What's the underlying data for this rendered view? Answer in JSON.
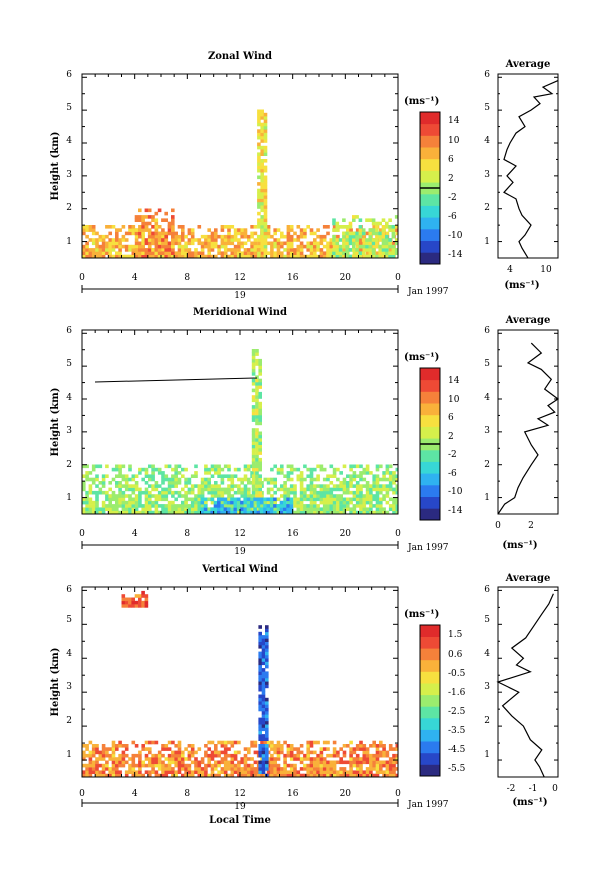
{
  "panels": [
    {
      "title": "Zonal Wind",
      "ylabel": "Height (km)",
      "xticks": [
        "0",
        "4",
        "8",
        "12",
        "16",
        "20",
        "0"
      ],
      "yticks": [
        "1",
        "2",
        "3",
        "4",
        "5",
        "6"
      ],
      "day_label": "19",
      "month_label": "Jan 1997",
      "unit": "(ms⁻¹)",
      "cbar_ticks": [
        "14",
        "10",
        "6",
        "2",
        "-2",
        "-6",
        "-10",
        "-14"
      ],
      "cbar_range": [
        -16,
        16
      ],
      "cbar_line": 0,
      "avg_title": "Average",
      "avg_xticks": [
        "4",
        "10"
      ],
      "avg_xunit": "(ms⁻¹)",
      "avg_yticks": [
        "1",
        "2",
        "3",
        "4",
        "5",
        "6"
      ]
    },
    {
      "title": "Meridional Wind",
      "ylabel": "Height (km)",
      "xticks": [
        "0",
        "4",
        "8",
        "12",
        "16",
        "20",
        "0"
      ],
      "yticks": [
        "1",
        "2",
        "3",
        "4",
        "5",
        "6"
      ],
      "day_label": "19",
      "month_label": "Jan 1997",
      "unit": "(ms⁻¹)",
      "cbar_ticks": [
        "14",
        "10",
        "6",
        "2",
        "-2",
        "-6",
        "-10",
        "-14"
      ],
      "cbar_range": [
        -16,
        16
      ],
      "cbar_line": 0,
      "avg_title": "Average",
      "avg_xticks": [
        "0",
        "2"
      ],
      "avg_xunit": "(ms⁻¹)",
      "avg_yticks": [
        "1",
        "2",
        "3",
        "4",
        "5",
        "6"
      ]
    },
    {
      "title": "Vertical Wind",
      "ylabel": "Height (km)",
      "xticks": [
        "0",
        "4",
        "8",
        "12",
        "16",
        "20",
        "0"
      ],
      "yticks": [
        "1",
        "2",
        "3",
        "4",
        "5",
        "6"
      ],
      "day_label": "19",
      "month_label": "Jan 1997",
      "unit": "(ms⁻¹)",
      "cbar_ticks": [
        "1.5",
        "0.6",
        "-0.5",
        "-1.6",
        "-2.5",
        "-3.5",
        "-4.5",
        "-5.5"
      ],
      "cbar_range": [
        -6,
        2
      ],
      "cbar_line": null,
      "avg_title": "Average",
      "avg_xticks": [
        "-2",
        "-1",
        "0"
      ],
      "avg_xunit": "(ms⁻¹)",
      "avg_yticks": [
        "1",
        "2",
        "3",
        "4",
        "5",
        "6"
      ]
    }
  ],
  "xlabel_bottom": "Local Time",
  "colors": {
    "scale": [
      "#2b2a80",
      "#2747c8",
      "#2b7bef",
      "#2fb2f0",
      "#37d7d6",
      "#5de5a4",
      "#9bec6e",
      "#d6ef4b",
      "#f7e03f",
      "#f9b13a",
      "#f5813a",
      "#ee4a35",
      "#e02b2b"
    ],
    "background": "#ffffff"
  },
  "chart_data": [
    {
      "type": "heatmap",
      "title": "Zonal Wind",
      "xlabel": "",
      "ylabel": "Height (km)",
      "x_range_hours": [
        0,
        24
      ],
      "y_range_km": [
        0.5,
        6
      ],
      "colorbar_range": [
        -16,
        16
      ],
      "features": [
        {
          "name": "low-level band",
          "x_hours": [
            0,
            24
          ],
          "y_km": [
            0.5,
            1.5
          ],
          "value": 7
        },
        {
          "name": "morning patches",
          "x_hours": [
            4,
            7
          ],
          "y_km": [
            0.5,
            2.0
          ],
          "value": 9
        },
        {
          "name": "column 13.5 h",
          "x_hours": [
            13.3,
            14.0
          ],
          "y_km": [
            0.5,
            5.0
          ],
          "value": 4
        },
        {
          "name": "night region",
          "x_hours": [
            19,
            24
          ],
          "y_km": [
            0.5,
            1.8
          ],
          "value": 1
        }
      ],
      "average_profile": {
        "height_km": [
          0.5,
          0.8,
          1.0,
          1.2,
          1.5,
          1.8,
          2.0,
          2.3,
          2.5,
          2.8,
          3.0,
          3.3,
          3.5,
          3.8,
          4.0,
          4.3,
          4.5,
          4.8,
          5.0,
          5.2,
          5.4,
          5.5,
          5.7,
          5.9
        ],
        "value": [
          7.0,
          6.0,
          5.5,
          6.5,
          7.5,
          6.0,
          5.5,
          5.0,
          3.0,
          4.5,
          3.5,
          5.0,
          3.0,
          3.5,
          4.0,
          5.0,
          6.5,
          5.5,
          7.5,
          9.0,
          8.0,
          11.0,
          9.5,
          12.0
        ],
        "xlim": [
          2,
          12
        ]
      }
    },
    {
      "type": "heatmap",
      "title": "Meridional Wind",
      "xlabel": "",
      "ylabel": "Height (km)",
      "x_range_hours": [
        0,
        24
      ],
      "y_range_km": [
        0.5,
        6
      ],
      "colorbar_range": [
        -16,
        16
      ],
      "features": [
        {
          "name": "low-level band",
          "x_hours": [
            0,
            24
          ],
          "y_km": [
            0.5,
            2.0
          ],
          "value": 0
        },
        {
          "name": "column 13 h",
          "x_hours": [
            12.9,
            13.6
          ],
          "y_km": [
            0.5,
            5.5
          ],
          "value": 1
        },
        {
          "name": "negative core",
          "x_hours": [
            9,
            16
          ],
          "y_km": [
            0.5,
            1.0
          ],
          "value": -7
        }
      ],
      "average_profile": {
        "height_km": [
          0.5,
          0.8,
          1.0,
          1.3,
          1.6,
          2.0,
          2.3,
          2.6,
          3.0,
          3.2,
          3.4,
          3.6,
          3.8,
          4.0,
          4.3,
          4.6,
          4.9,
          5.1,
          5.4,
          5.7
        ],
        "value": [
          0.0,
          0.4,
          1.0,
          1.2,
          1.5,
          2.0,
          2.4,
          2.0,
          1.6,
          3.0,
          2.4,
          3.4,
          3.0,
          3.6,
          2.8,
          3.2,
          2.6,
          1.8,
          2.6,
          2.0
        ],
        "xlim": [
          0,
          3.6
        ]
      }
    },
    {
      "type": "heatmap",
      "title": "Vertical Wind",
      "xlabel": "Local Time",
      "ylabel": "Height (km)",
      "x_range_hours": [
        0,
        24
      ],
      "y_range_km": [
        0.5,
        6
      ],
      "colorbar_range": [
        -6,
        2
      ],
      "features": [
        {
          "name": "low-level band",
          "x_hours": [
            0,
            24
          ],
          "y_km": [
            0.5,
            1.6
          ],
          "value": 0.3
        },
        {
          "name": "downdraft column",
          "x_hours": [
            13.4,
            14.2
          ],
          "y_km": [
            0.5,
            5.0
          ],
          "value": -4.8
        },
        {
          "name": "isolated points",
          "x_hours": [
            3,
            5
          ],
          "y_km": [
            5.5,
            6.0
          ],
          "value": 0.8
        }
      ],
      "average_profile": {
        "height_km": [
          0.5,
          0.8,
          1.0,
          1.3,
          1.6,
          2.0,
          2.3,
          2.6,
          3.0,
          3.3,
          3.6,
          3.8,
          4.0,
          4.3,
          4.6,
          5.0,
          5.3,
          5.6,
          5.9
        ],
        "value": [
          -0.4,
          -0.6,
          -0.8,
          -0.5,
          -1.0,
          -1.3,
          -1.8,
          -2.2,
          -1.5,
          -2.4,
          -1.0,
          -1.6,
          -1.3,
          -1.8,
          -1.2,
          -0.8,
          -0.5,
          -0.2,
          0.0
        ],
        "xlim": [
          -2.4,
          0.2
        ]
      }
    }
  ]
}
